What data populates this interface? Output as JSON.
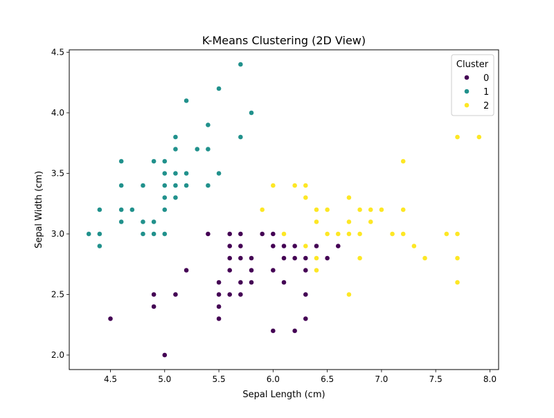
{
  "chart_data": {
    "type": "scatter",
    "title": "K-Means Clustering (2D View)",
    "xlabel": "Sepal Length (cm)",
    "ylabel": "Sepal Width (cm)",
    "xlim": [
      4.12,
      8.08
    ],
    "ylim": [
      1.88,
      4.52
    ],
    "xticks": [
      "4.5",
      "5.0",
      "5.5",
      "6.0",
      "6.5",
      "7.0",
      "7.5",
      "8.0"
    ],
    "yticks": [
      "2.0",
      "2.5",
      "3.0",
      "3.5",
      "4.0",
      "4.5"
    ],
    "grid": false,
    "legend": {
      "title": "Cluster",
      "placement": "top-right"
    },
    "series": [
      {
        "name": "0",
        "color": "#440154",
        "points": [
          [
            5.0,
            2.0
          ],
          [
            6.0,
            2.2
          ],
          [
            6.2,
            2.2
          ],
          [
            4.5,
            2.3
          ],
          [
            5.5,
            2.3
          ],
          [
            6.3,
            2.3
          ],
          [
            4.9,
            2.4
          ],
          [
            5.5,
            2.4
          ],
          [
            4.9,
            2.5
          ],
          [
            5.1,
            2.5
          ],
          [
            5.5,
            2.5
          ],
          [
            5.6,
            2.5
          ],
          [
            5.7,
            2.5
          ],
          [
            6.3,
            2.5
          ],
          [
            5.5,
            2.6
          ],
          [
            5.7,
            2.6
          ],
          [
            5.8,
            2.6
          ],
          [
            6.1,
            2.6
          ],
          [
            5.2,
            2.7
          ],
          [
            5.6,
            2.7
          ],
          [
            5.8,
            2.7
          ],
          [
            6.0,
            2.7
          ],
          [
            6.3,
            2.7
          ],
          [
            5.6,
            2.8
          ],
          [
            5.7,
            2.8
          ],
          [
            5.8,
            2.8
          ],
          [
            6.1,
            2.8
          ],
          [
            6.2,
            2.8
          ],
          [
            6.3,
            2.8
          ],
          [
            6.4,
            2.8
          ],
          [
            6.5,
            2.8
          ],
          [
            5.6,
            2.9
          ],
          [
            5.7,
            2.9
          ],
          [
            6.0,
            2.9
          ],
          [
            6.1,
            2.9
          ],
          [
            6.2,
            2.9
          ],
          [
            6.4,
            2.9
          ],
          [
            6.6,
            2.9
          ],
          [
            5.4,
            3.0
          ],
          [
            5.6,
            3.0
          ],
          [
            5.7,
            3.0
          ],
          [
            5.9,
            3.0
          ],
          [
            6.0,
            3.0
          ]
        ]
      },
      {
        "name": "1",
        "color": "#21918c",
        "points": [
          [
            4.4,
            2.9
          ],
          [
            4.3,
            3.0
          ],
          [
            4.4,
            3.0
          ],
          [
            4.8,
            3.0
          ],
          [
            4.9,
            3.0
          ],
          [
            5.0,
            3.0
          ],
          [
            4.6,
            3.1
          ],
          [
            4.8,
            3.1
          ],
          [
            4.9,
            3.1
          ],
          [
            4.4,
            3.2
          ],
          [
            4.6,
            3.2
          ],
          [
            4.7,
            3.2
          ],
          [
            5.0,
            3.2
          ],
          [
            5.0,
            3.3
          ],
          [
            5.1,
            3.3
          ],
          [
            4.6,
            3.4
          ],
          [
            4.8,
            3.4
          ],
          [
            5.0,
            3.4
          ],
          [
            5.1,
            3.4
          ],
          [
            5.2,
            3.4
          ],
          [
            5.4,
            3.4
          ],
          [
            5.0,
            3.5
          ],
          [
            5.1,
            3.5
          ],
          [
            5.2,
            3.5
          ],
          [
            5.5,
            3.5
          ],
          [
            4.6,
            3.6
          ],
          [
            4.9,
            3.6
          ],
          [
            5.0,
            3.6
          ],
          [
            5.1,
            3.7
          ],
          [
            5.3,
            3.7
          ],
          [
            5.4,
            3.7
          ],
          [
            5.1,
            3.8
          ],
          [
            5.7,
            3.8
          ],
          [
            5.4,
            3.9
          ],
          [
            5.8,
            4.0
          ],
          [
            5.2,
            4.1
          ],
          [
            5.5,
            4.2
          ],
          [
            5.7,
            4.4
          ]
        ]
      },
      {
        "name": "2",
        "color": "#fde725",
        "points": [
          [
            6.7,
            2.5
          ],
          [
            7.7,
            2.6
          ],
          [
            6.4,
            2.7
          ],
          [
            6.4,
            2.8
          ],
          [
            6.8,
            2.8
          ],
          [
            7.4,
            2.8
          ],
          [
            7.7,
            2.8
          ],
          [
            6.3,
            2.9
          ],
          [
            7.3,
            2.9
          ],
          [
            6.1,
            3.0
          ],
          [
            6.5,
            3.0
          ],
          [
            6.6,
            3.0
          ],
          [
            6.7,
            3.0
          ],
          [
            6.8,
            3.0
          ],
          [
            7.1,
            3.0
          ],
          [
            7.2,
            3.0
          ],
          [
            7.6,
            3.0
          ],
          [
            7.7,
            3.0
          ],
          [
            6.4,
            3.1
          ],
          [
            6.7,
            3.1
          ],
          [
            6.9,
            3.1
          ],
          [
            5.9,
            3.2
          ],
          [
            6.4,
            3.2
          ],
          [
            6.5,
            3.2
          ],
          [
            6.8,
            3.2
          ],
          [
            6.9,
            3.2
          ],
          [
            7.0,
            3.2
          ],
          [
            7.2,
            3.2
          ],
          [
            6.3,
            3.3
          ],
          [
            6.7,
            3.3
          ],
          [
            6.0,
            3.4
          ],
          [
            6.2,
            3.4
          ],
          [
            6.3,
            3.4
          ],
          [
            7.2,
            3.6
          ],
          [
            7.7,
            3.8
          ],
          [
            7.9,
            3.8
          ]
        ]
      }
    ]
  }
}
